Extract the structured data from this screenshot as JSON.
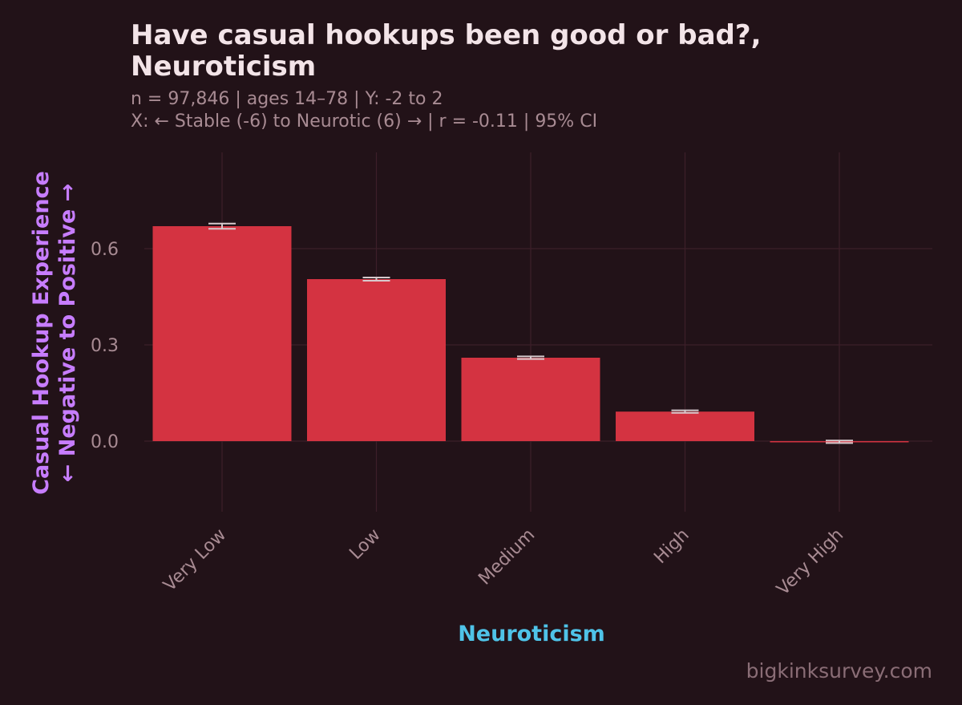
{
  "chart_data": {
    "type": "bar",
    "title_lines": [
      "Have casual hookups been good or bad?,",
      "Neuroticism"
    ],
    "subtitle_lines": [
      "n = 97,846  |  ages 14–78  |  Y: -2 to 2",
      "X: ← Stable (-6) to Neurotic (6) →  |  r = -0.11  |  95% CI"
    ],
    "xlabel": "Neuroticism",
    "ylabel_lines": [
      "Casual Hookup Experience",
      "← Negative to Positive →"
    ],
    "categories": [
      "Very Low",
      "Low",
      "Medium",
      "High",
      "Very High"
    ],
    "values": [
      0.67,
      0.505,
      0.26,
      0.092,
      -0.002
    ],
    "ci_low": [
      0.662,
      0.5,
      0.256,
      0.088,
      -0.006
    ],
    "ci_high": [
      0.678,
      0.51,
      0.264,
      0.096,
      0.002
    ],
    "yticks": [
      0.0,
      0.3,
      0.6
    ],
    "ytick_labels": [
      "0.0",
      "0.3",
      "0.6"
    ],
    "ylim": [
      -0.22,
      0.9
    ],
    "grid": true,
    "bar_color": "#d43341",
    "errorbar_color": "#d6c9cc",
    "background_color": "#221218",
    "xlabel_color": "#4fc3e8",
    "ylabel_color": "#c77dff"
  },
  "watermark": "bigkinksurvey.com"
}
